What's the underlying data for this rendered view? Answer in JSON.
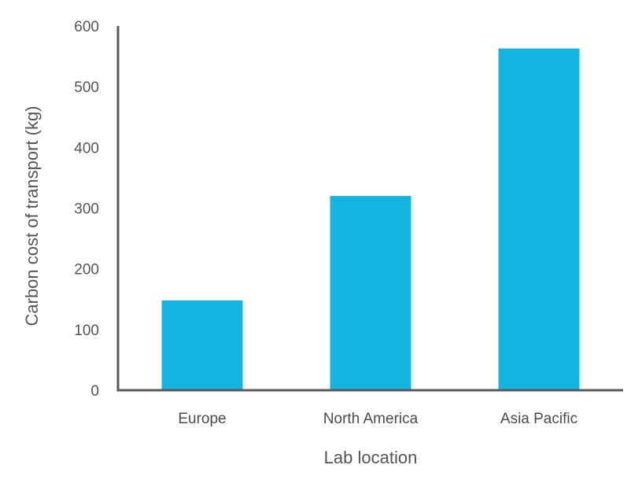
{
  "chart_data": {
    "type": "bar",
    "title": "",
    "xlabel": "Lab location",
    "ylabel": "Carbon cost of transport (kg)",
    "categories": [
      "Europe",
      "North America",
      "Asia Pacific"
    ],
    "values": [
      148,
      320,
      563
    ],
    "ylim": [
      0,
      600
    ],
    "yticks": [
      0,
      100,
      200,
      300,
      400,
      500,
      600
    ],
    "grid": false,
    "legend": "none",
    "colors": {
      "bar": "#14B5E3",
      "axis": "#5A5A5A",
      "text": "#555555"
    }
  }
}
